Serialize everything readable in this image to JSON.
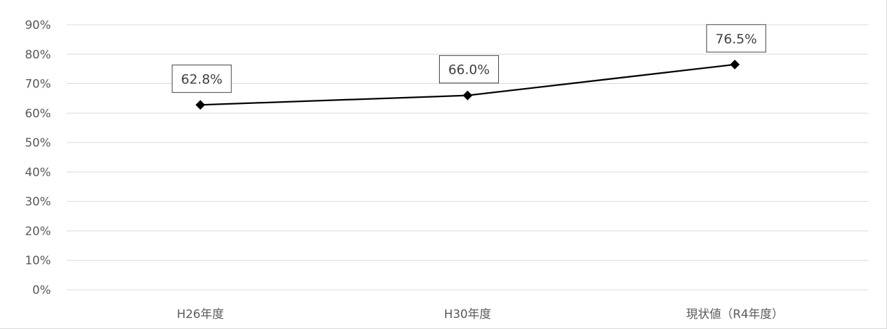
{
  "chart_data": {
    "type": "line",
    "categories": [
      "H26年度",
      "H30年度",
      "現状値（R4年度）"
    ],
    "series": [
      {
        "values": [
          62.8,
          66.0,
          76.5
        ],
        "data_labels": [
          "62.8%",
          "66.0%",
          "76.5%"
        ],
        "color": "#000000",
        "marker": "diamond"
      }
    ],
    "ylim": [
      0,
      90
    ],
    "y_ticks": [
      0,
      10,
      20,
      30,
      40,
      50,
      60,
      70,
      80,
      90
    ],
    "y_tick_labels": [
      "0%",
      "10%",
      "20%",
      "30%",
      "40%",
      "50%",
      "60%",
      "70%",
      "80%",
      "90%"
    ],
    "grid": true,
    "legend": "none",
    "title": "",
    "xlabel": "",
    "ylabel": "",
    "colors": {
      "gridline": "#d9d9d9",
      "tick_text": "#595959",
      "label_border": "#404040"
    }
  }
}
